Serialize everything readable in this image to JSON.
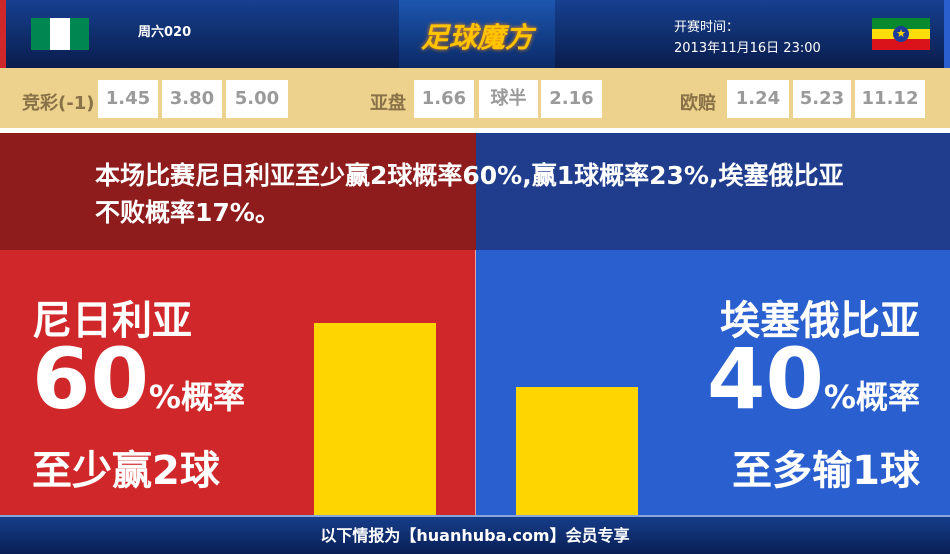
{
  "header": {
    "match_label": "周六020",
    "logo_text": "足球魔方",
    "time_label": "开赛时间：",
    "time": "2013年11月16日 23:00",
    "home_flag": "nigeria-flag",
    "away_flag": "ethiopia-flag"
  },
  "odds": {
    "jingcai": {
      "label": "竞彩(-1)",
      "values": [
        "1.45",
        "3.80",
        "5.00"
      ]
    },
    "yapan": {
      "label": "亚盘",
      "values": [
        "1.66",
        "球半",
        "2.16"
      ]
    },
    "oupei": {
      "label": "欧赔",
      "values": [
        "1.24",
        "5.23",
        "11.12"
      ]
    }
  },
  "summary": "本场比赛尼日利亚至少赢2球概率60%,赢1球概率23%,埃塞俄比亚不败概率17%。",
  "home": {
    "team": "尼日利亚",
    "percent": "60",
    "percent_suffix": "%概率",
    "desc": "至少赢2球",
    "value": 60,
    "color": "#d0282a"
  },
  "away": {
    "team": "埃塞俄比亚",
    "percent": "40",
    "percent_suffix": "%概率",
    "desc": "至多输1球",
    "value": 40,
    "color": "#2a5fcf"
  },
  "bar_color": "#ffd500",
  "footer": "以下情报为【huanhuba.com】会员专享"
}
